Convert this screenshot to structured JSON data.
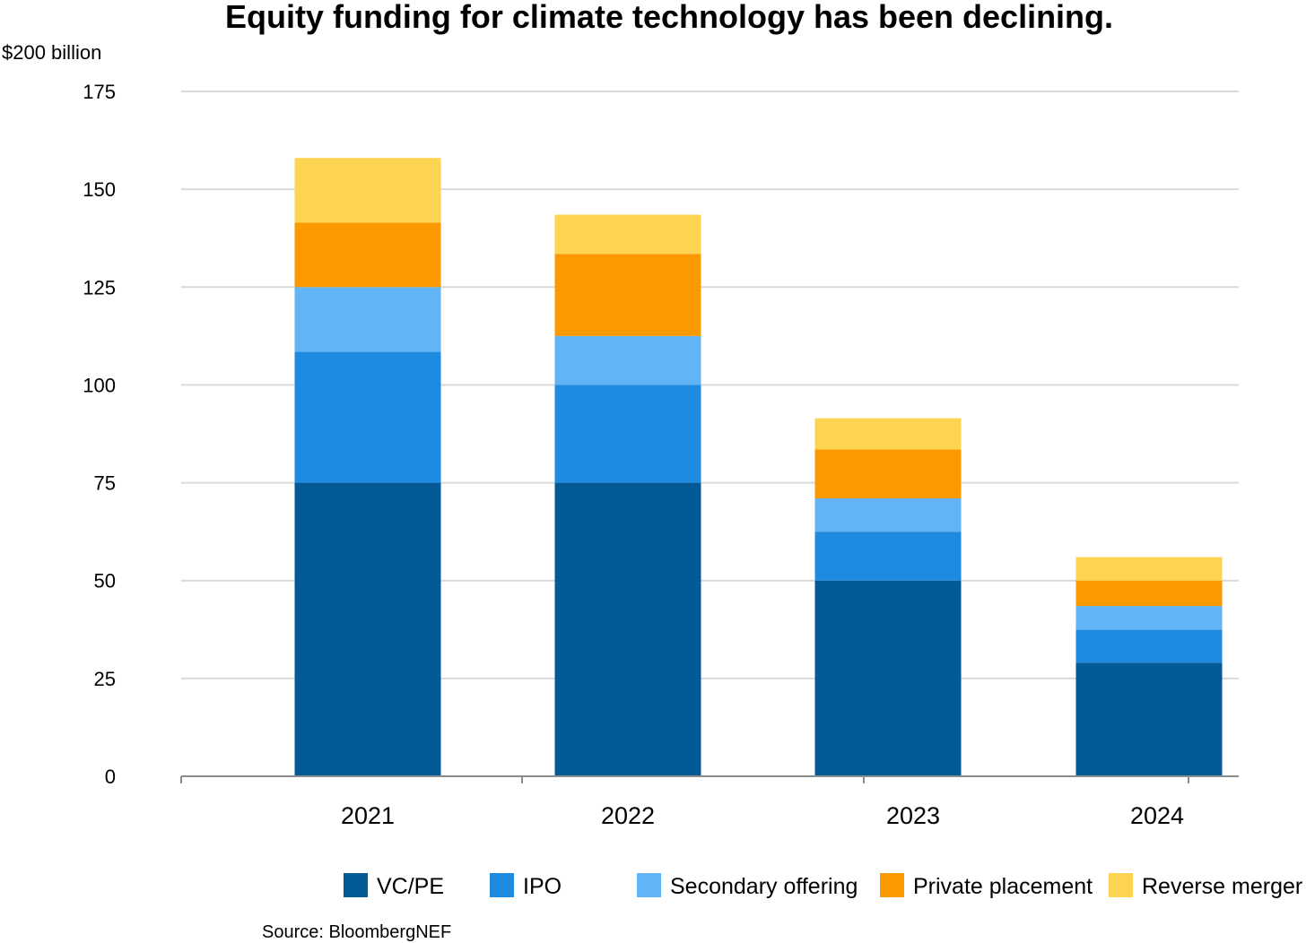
{
  "chart_data": {
    "type": "bar",
    "stacked": true,
    "title": "Equity funding for climate technology has been declining.",
    "unit_label": "$200 billion",
    "xlabel": "",
    "ylabel": "",
    "ylim": [
      0,
      175
    ],
    "yticks": [
      0,
      25,
      50,
      75,
      100,
      125,
      150,
      175
    ],
    "grid": true,
    "legend_position": "bottom",
    "categories": [
      "2021",
      "2022",
      "2023",
      "2024"
    ],
    "series": [
      {
        "name": "VC/PE",
        "color": "#045a96",
        "values": [
          75,
          75,
          50,
          29
        ]
      },
      {
        "name": "IPO",
        "color": "#1f8be0",
        "values": [
          33.5,
          25,
          12.5,
          8.5
        ]
      },
      {
        "name": "Secondary offering",
        "color": "#63b4f4",
        "values": [
          16.5,
          12.5,
          8.5,
          6
        ]
      },
      {
        "name": "Private placement",
        "color": "#fa9a00",
        "values": [
          16.5,
          21,
          12.5,
          6.5
        ]
      },
      {
        "name": "Reverse merger",
        "color": "#fdd451",
        "values": [
          16.5,
          10,
          8,
          6
        ]
      }
    ],
    "source": "Source: BloombergNEF"
  }
}
